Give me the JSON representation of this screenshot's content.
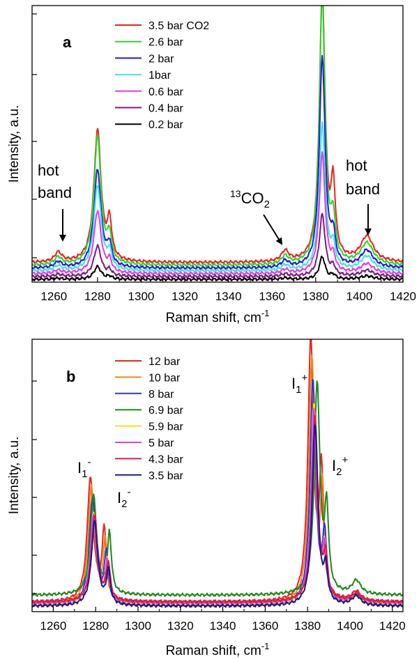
{
  "chart_data": [
    {
      "type": "line",
      "panel_label": "a",
      "xlabel": "Raman shift, cm",
      "xlabel_sup": "-1",
      "ylabel": "Intensity, a.u.",
      "xlim": [
        1250,
        1420
      ],
      "ylim": [
        0,
        100
      ],
      "x_ticks": [
        1260,
        1280,
        1300,
        1320,
        1340,
        1360,
        1380,
        1400,
        1420
      ],
      "y_ticks_labeled": false,
      "grid": false,
      "legend_position": "top-left",
      "annotations": [
        {
          "text_lines": [
            "hot",
            "band"
          ],
          "points_to_x": 1262
        },
        {
          "text": "CO",
          "prefix_sup": "13",
          "suffix_sub": "2",
          "points_to_x": 1364
        },
        {
          "text_lines": [
            "hot",
            "band"
          ],
          "points_to_x": 1404
        }
      ],
      "series": [
        {
          "name": "3.5 bar CO2",
          "color": "#e8241f",
          "baseline": 7.0,
          "peaks": [
            [
              1280,
              47.8,
              2.0
            ],
            [
              1285.5,
              13,
              1.2
            ],
            [
              1383,
              97.2,
              1.6
            ],
            [
              1388,
              25,
              1.2
            ],
            [
              1403.5,
              9.2,
              3.5
            ],
            [
              1262,
              3.5,
              2.0
            ],
            [
              1366,
              3.8,
              2.0
            ]
          ]
        },
        {
          "name": "2.6 bar",
          "color": "#2fd42f",
          "baseline": 6.0,
          "peaks": [
            [
              1280,
              46.5,
              2.0
            ],
            [
              1285.5,
              9,
              1.2
            ],
            [
              1383,
              96.2,
              1.6
            ],
            [
              1388,
              14,
              1.2
            ],
            [
              1403.5,
              7.8,
              3.5
            ],
            [
              1262,
              2.8,
              2.0
            ],
            [
              1366,
              3.0,
              2.0
            ]
          ]
        },
        {
          "name": "2 bar",
          "color": "#1f1fd0",
          "baseline": 5.0,
          "peaks": [
            [
              1280,
              35.5,
              2.0
            ],
            [
              1285.5,
              7,
              1.2
            ],
            [
              1383,
              76.3,
              1.6
            ],
            [
              1388,
              10,
              1.2
            ],
            [
              1403.5,
              6.2,
              3.5
            ],
            [
              1262,
              2.2,
              2.0
            ],
            [
              1366,
              2.4,
              2.0
            ]
          ]
        },
        {
          "name": "1bar",
          "color": "#3fe0ea",
          "baseline": 4.0,
          "peaks": [
            [
              1280,
              31.0,
              2.0
            ],
            [
              1285.5,
              6,
              1.2
            ],
            [
              1383,
              53.2,
              1.6
            ],
            [
              1388,
              8,
              1.2
            ],
            [
              1403.5,
              5.2,
              3.5
            ],
            [
              1262,
              1.8,
              2.0
            ],
            [
              1366,
              2.0,
              2.0
            ]
          ]
        },
        {
          "name": "0.6 bar",
          "color": "#e23ee2",
          "baseline": 3.0,
          "peaks": [
            [
              1280,
              22.7,
              2.0
            ],
            [
              1285.5,
              4,
              1.2
            ],
            [
              1383,
              43.3,
              1.6
            ],
            [
              1388,
              5,
              1.2
            ],
            [
              1403.5,
              3.5,
              3.5
            ],
            [
              1262,
              1.2,
              2.0
            ],
            [
              1366,
              1.4,
              2.0
            ]
          ]
        },
        {
          "name": "0.4 bar",
          "color": "#7d1a82",
          "baseline": 2.0,
          "peaks": [
            [
              1280,
              11.0,
              2.0
            ],
            [
              1285.5,
              2,
              1.2
            ],
            [
              1383,
              22.4,
              1.6
            ],
            [
              1388,
              3,
              1.2
            ],
            [
              1403.5,
              2.2,
              3.5
            ],
            [
              1262,
              0.8,
              2.0
            ],
            [
              1366,
              0.9,
              2.0
            ]
          ]
        },
        {
          "name": "0.2 bar",
          "color": "#000000",
          "baseline": 1.0,
          "peaks": [
            [
              1280,
              4.6,
              2.0
            ],
            [
              1285.5,
              1,
              1.2
            ],
            [
              1383,
              8.2,
              1.6
            ],
            [
              1388,
              1.5,
              1.2
            ],
            [
              1403.5,
              1.2,
              3.5
            ],
            [
              1262,
              0.4,
              2.0
            ],
            [
              1366,
              0.5,
              2.0
            ]
          ]
        }
      ]
    },
    {
      "type": "line",
      "panel_label": "b",
      "xlabel": "Raman shift, cm",
      "xlabel_sup": "-1",
      "ylabel": "Intensity, a.u.",
      "xlim": [
        1250,
        1425
      ],
      "ylim": [
        0,
        100
      ],
      "x_ticks": [
        1260,
        1280,
        1300,
        1320,
        1340,
        1360,
        1380,
        1400,
        1420
      ],
      "y_ticks_labeled": false,
      "grid": false,
      "legend_position": "top-left",
      "annotations": [
        {
          "text": "I",
          "sub": "1",
          "sup": "-",
          "near_x": 1278
        },
        {
          "text": "I",
          "sub": "2",
          "sup": "-",
          "near_x": 1287
        },
        {
          "text": "I",
          "sub": "1",
          "sup": "+",
          "near_x": 1382
        },
        {
          "text": "I",
          "sub": "2",
          "sup": "+",
          "near_x": 1389
        }
      ],
      "series": [
        {
          "name": "12 bar",
          "color": "#e8241f",
          "baseline": 3.5,
          "peaks": [
            [
              1277.5,
              45.5,
              1.8
            ],
            [
              1284,
              26,
              1.1
            ],
            [
              1381.5,
              96.5,
              1.6
            ],
            [
              1386.5,
              46,
              1.1
            ],
            [
              1403,
              3.5,
              2.5
            ]
          ]
        },
        {
          "name": "10 bar",
          "color": "#f0891a",
          "baseline": 3.0,
          "peaks": [
            [
              1278,
              42.5,
              1.8
            ],
            [
              1284.5,
              22,
              1.1
            ],
            [
              1382,
              89.5,
              1.6
            ],
            [
              1387,
              39,
              1.1
            ],
            [
              1403,
              3.2,
              2.5
            ]
          ]
        },
        {
          "name": "8 bar",
          "color": "#3535c8",
          "baseline": 2.5,
          "peaks": [
            [
              1278.5,
              39.5,
              1.8
            ],
            [
              1285,
              18,
              1.1
            ],
            [
              1382.5,
              82.5,
              1.6
            ],
            [
              1388,
              24,
              1.1
            ],
            [
              1403,
              3.0,
              2.5
            ]
          ]
        },
        {
          "name": "6.9 bar",
          "color": "#1b8a1b",
          "baseline": 6.0,
          "peaks": [
            [
              1279,
              36.5,
              1.8
            ],
            [
              1286.5,
              22,
              1.1
            ],
            [
              1384.5,
              77.5,
              1.6
            ],
            [
              1389,
              29,
              1.1
            ],
            [
              1403,
              5.0,
              2.5
            ]
          ]
        },
        {
          "name": "5.9 bar",
          "color": "#f2e41e",
          "baseline": 2.5,
          "peaks": [
            [
              1279,
              33.5,
              1.8
            ],
            [
              1285.5,
              15,
              1.1
            ],
            [
              1383,
              72.5,
              1.6
            ],
            [
              1388,
              18,
              1.1
            ],
            [
              1403,
              2.8,
              2.5
            ]
          ]
        },
        {
          "name": "5 bar",
          "color": "#e23ee2",
          "baseline": 3.0,
          "peaks": [
            [
              1279,
              32.5,
              1.8
            ],
            [
              1285.5,
              14,
              1.1
            ],
            [
              1383,
              70.5,
              1.6
            ],
            [
              1388,
              17,
              1.1
            ],
            [
              1403,
              3.0,
              2.5
            ]
          ]
        },
        {
          "name": "4.3 bar",
          "color": "#d11f4a",
          "baseline": 3.5,
          "peaks": [
            [
              1279.5,
              31.5,
              1.8
            ],
            [
              1286,
              13,
              1.1
            ],
            [
              1383.5,
              68.5,
              1.6
            ],
            [
              1388.5,
              15,
              1.1
            ],
            [
              1403,
              3.0,
              2.5
            ]
          ]
        },
        {
          "name": "3.5 bar",
          "color": "#1a1a8c",
          "baseline": 2.0,
          "peaks": [
            [
              1279.5,
              31.0,
              1.8
            ],
            [
              1286,
              12,
              1.1
            ],
            [
              1383.5,
              66.5,
              1.6
            ],
            [
              1388.5,
              12,
              1.1
            ],
            [
              1403,
              3.5,
              2.5
            ]
          ]
        }
      ]
    }
  ]
}
